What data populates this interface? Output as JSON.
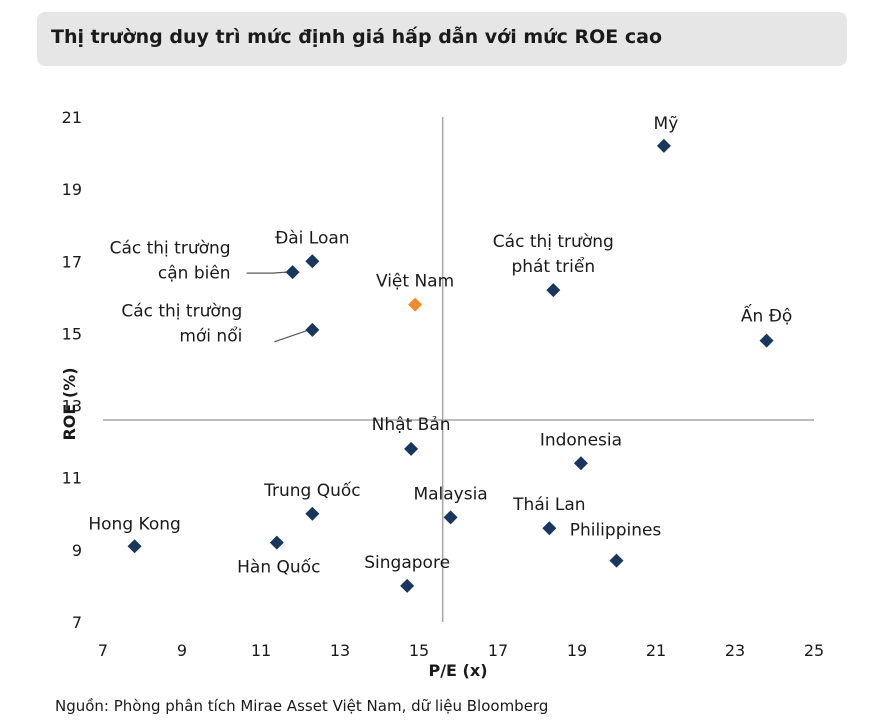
{
  "title": "Thị trường duy trì mức định giá hấp dẫn với mức ROE cao",
  "source": "Nguồn: Phòng phân tích Mirae Asset Việt Nam, dữ liệu Bloomberg",
  "colors": {
    "default_marker": "#17375e",
    "highlight_marker": "#f28c28",
    "divider": "#a6a6a6"
  },
  "chart_data": {
    "type": "scatter",
    "xlabel": "P/E (x)",
    "ylabel": "ROE (%)",
    "xlim": [
      7,
      25
    ],
    "ylim": [
      7,
      21
    ],
    "xticks": [
      7,
      9,
      11,
      13,
      15,
      17,
      19,
      21,
      23,
      25
    ],
    "yticks": [
      7,
      9,
      11,
      13,
      15,
      17,
      19,
      21
    ],
    "divider_x": 15.6,
    "divider_y": 12.6,
    "grid": false,
    "points": [
      {
        "name": "Mỹ",
        "x": 21.2,
        "y": 20.2,
        "highlight": false
      },
      {
        "name": "Đài Loan",
        "x": 12.3,
        "y": 17.0,
        "highlight": false
      },
      {
        "name": "Các thị trường cận biên",
        "x": 11.8,
        "y": 16.7,
        "highlight": false
      },
      {
        "name": "Việt Nam",
        "x": 14.9,
        "y": 15.8,
        "highlight": true
      },
      {
        "name": "Các thị trường phát triển",
        "x": 18.4,
        "y": 16.2,
        "highlight": false
      },
      {
        "name": "Ấn Độ",
        "x": 23.8,
        "y": 14.8,
        "highlight": false
      },
      {
        "name": "Các thị trường mới nổi",
        "x": 12.3,
        "y": 15.1,
        "highlight": false
      },
      {
        "name": "Nhật Bản",
        "x": 14.8,
        "y": 11.8,
        "highlight": false
      },
      {
        "name": "Indonesia",
        "x": 19.1,
        "y": 11.4,
        "highlight": false
      },
      {
        "name": "Trung Quốc",
        "x": 12.3,
        "y": 10.0,
        "highlight": false
      },
      {
        "name": "Malaysia",
        "x": 15.8,
        "y": 9.9,
        "highlight": false
      },
      {
        "name": "Hong Kong",
        "x": 7.8,
        "y": 9.1,
        "highlight": false
      },
      {
        "name": "Hàn Quốc",
        "x": 11.4,
        "y": 9.2,
        "highlight": false
      },
      {
        "name": "Thái Lan",
        "x": 18.3,
        "y": 9.6,
        "highlight": false
      },
      {
        "name": "Philippines",
        "x": 20.0,
        "y": 8.7,
        "highlight": false
      },
      {
        "name": "Singapore",
        "x": 14.7,
        "y": 8.0,
        "highlight": false
      }
    ],
    "label_lines": [
      [
        "Mỹ"
      ],
      [
        "Đài Loan"
      ],
      [
        "Các thị trường",
        "cận biên"
      ],
      [
        "Việt Nam"
      ],
      [
        "Các thị trường",
        "phát triển"
      ],
      [
        "Ấn Độ"
      ],
      [
        "Các thị trường",
        "mới nổi"
      ],
      [
        "Nhật Bản"
      ],
      [
        "Indonesia"
      ],
      [
        "Trung Quốc"
      ],
      [
        "Malaysia"
      ],
      [
        "Hong Kong"
      ],
      [
        "Hàn Quốc"
      ],
      [
        "Thái Lan"
      ],
      [
        "Philippines"
      ],
      [
        "Singapore"
      ]
    ]
  }
}
